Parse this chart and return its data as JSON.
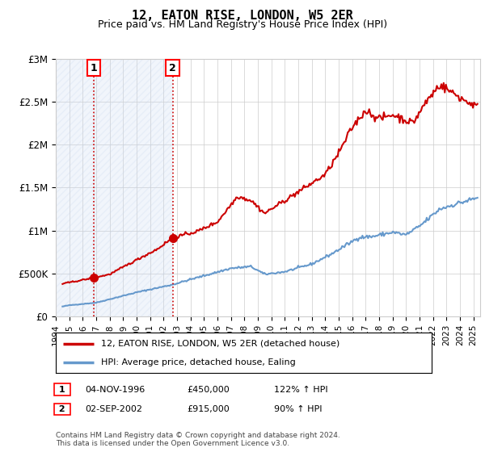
{
  "title": "12, EATON RISE, LONDON, W5 2ER",
  "subtitle": "Price paid vs. HM Land Registry's House Price Index (HPI)",
  "ylim": [
    0,
    3000000
  ],
  "yticks": [
    0,
    500000,
    1000000,
    1500000,
    2000000,
    2500000,
    3000000
  ],
  "ytick_labels": [
    "£0",
    "£500K",
    "£1M",
    "£1.5M",
    "£2M",
    "£2.5M",
    "£3M"
  ],
  "xlim_start": 1994.0,
  "xlim_end": 2025.5,
  "sale1_x": 1996.84,
  "sale1_y": 450000,
  "sale2_x": 2002.67,
  "sale2_y": 915000,
  "sale1_label": "1",
  "sale2_label": "2",
  "legend_line1": "12, EATON RISE, LONDON, W5 2ER (detached house)",
  "legend_line2": "HPI: Average price, detached house, Ealing",
  "footnote": "Contains HM Land Registry data © Crown copyright and database right 2024.\nThis data is licensed under the Open Government Licence v3.0.",
  "hatch_color": "#c8d8f0",
  "line_color_red": "#cc0000",
  "line_color_blue": "#6699cc",
  "background_color": "#ffffff",
  "plot_bg_color": "#ffffff",
  "hpi_key_years": [
    1994.5,
    1995.0,
    1997.0,
    2000.0,
    2002.67,
    2004.0,
    2007.0,
    2008.5,
    2009.5,
    2011.0,
    2013.0,
    2014.5,
    2016.5,
    2017.5,
    2019.0,
    2020.0,
    2021.0,
    2022.5,
    2023.5,
    2025.3
  ],
  "hpi_key_values": [
    115000,
    130000,
    160000,
    280000,
    370000,
    430000,
    560000,
    580000,
    490000,
    520000,
    610000,
    730000,
    920000,
    930000,
    980000,
    950000,
    1050000,
    1250000,
    1300000,
    1380000
  ],
  "prop_key_years": [
    1994.5,
    1996.84,
    1998.0,
    2000.5,
    2001.5,
    2002.67,
    2004.5,
    2006.0,
    2007.5,
    2008.5,
    2009.5,
    2010.5,
    2012.0,
    2013.0,
    2014.0,
    2015.0,
    2016.0,
    2017.0,
    2018.0,
    2019.0,
    2020.5,
    2021.5,
    2022.5,
    2023.5,
    2024.5,
    2025.3
  ],
  "prop_key_values": [
    380000,
    450000,
    490000,
    700000,
    780000,
    915000,
    990000,
    1100000,
    1400000,
    1350000,
    1200000,
    1300000,
    1450000,
    1550000,
    1650000,
    1900000,
    2200000,
    2400000,
    2300000,
    2350000,
    2250000,
    2500000,
    2700000,
    2600000,
    2500000,
    2450000
  ]
}
